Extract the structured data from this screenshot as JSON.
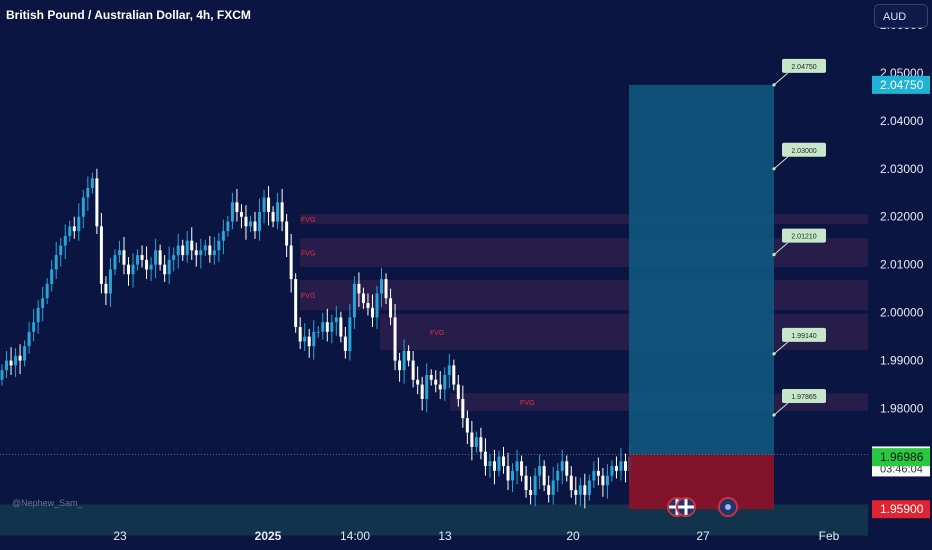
{
  "header": {
    "title": "British Pound / Australian Dollar, 4h, FXCM",
    "currency": "AUD"
  },
  "watermark": "@Nephew_Sam_",
  "colors": {
    "background": "#0b1541",
    "bull_candle": "#26a5d9",
    "bear_candle": "#ffffff",
    "target_zone": "#0f5b82",
    "stop_zone": "#8d1228",
    "fvg_zone": "#3a2350",
    "fvg_label": "#e0323e",
    "target_label_bg": "#c8e6c9",
    "current_price_label": "#ffffff",
    "bid_label": "#27c93f",
    "stop_label": "#e0232e",
    "take_profit_label": "#1fb3d6"
  },
  "chart_data": {
    "type": "candlestick",
    "title": "British Pound / Australian Dollar, 4h, FXCM",
    "y_unit": "AUD",
    "ylim": [
      1.9505,
      2.0652
    ],
    "y_ticks": [
      "2.06000",
      "2.05000",
      "2.04000",
      "2.03000",
      "2.02000",
      "2.01000",
      "2.00000",
      "1.99000",
      "1.98000"
    ],
    "x_ticks": [
      "23",
      "2025",
      "14:00",
      "13",
      "20",
      "27",
      "Feb"
    ],
    "grid": false,
    "candles_close": [
      1.988,
      1.99,
      1.989,
      1.991,
      1.99,
      1.993,
      1.996,
      1.998,
      2.001,
      2.003,
      2.006,
      2.009,
      2.012,
      2.014,
      2.016,
      2.018,
      2.017,
      2.02,
      2.024,
      2.026,
      2.028,
      2.018,
      2.006,
      2.004,
      2.009,
      2.012,
      2.013,
      2.01,
      2.008,
      2.01,
      2.012,
      2.011,
      2.009,
      2.01,
      2.013,
      2.01,
      2.008,
      2.011,
      2.012,
      2.014,
      2.012,
      2.015,
      2.013,
      2.012,
      2.013,
      2.014,
      2.012,
      2.013,
      2.015,
      2.017,
      2.019,
      2.023,
      2.021,
      2.02,
      2.018,
      2.019,
      2.017,
      2.021,
      2.024,
      2.021,
      2.019,
      2.023,
      2.019,
      2.014,
      2.007,
      1.997,
      1.994,
      1.995,
      1.993,
      1.996,
      1.996,
      1.998,
      1.996,
      1.998,
      1.999,
      1.995,
      1.992,
      1.999,
      2.006,
      2.004,
      2.002,
      2.001,
      1.999,
      2.004,
      2.007,
      2.003,
      1.999,
      1.99,
      1.988,
      1.992,
      1.99,
      1.986,
      1.985,
      1.982,
      1.987,
      1.986,
      1.985,
      1.984,
      1.987,
      1.989,
      1.985,
      1.982,
      1.978,
      1.975,
      1.972,
      1.974,
      1.971,
      1.968,
      1.969,
      1.967,
      1.97,
      1.968,
      1.965,
      1.967,
      1.969,
      1.966,
      1.963,
      1.962,
      1.966,
      1.968,
      1.964,
      1.962,
      1.965,
      1.967,
      1.969,
      1.966,
      1.963,
      1.962,
      1.964,
      1.962,
      1.965,
      1.967,
      1.966,
      1.964,
      1.966,
      1.968,
      1.967,
      1.969,
      1.967,
      1.97
    ],
    "current_price": "1.97043",
    "countdown": "03:46:04",
    "bid_price": "1.96986",
    "stop_loss": "1.95900",
    "take_profit": "2.04750",
    "entry": 1.9704,
    "fvg_zones": [
      {
        "label": "FVG",
        "from": 2.0185,
        "to": 2.0205
      },
      {
        "label": "FVG",
        "from": 2.0095,
        "to": 2.0155
      },
      {
        "label": "FVG",
        "from": 2.0005,
        "to": 2.0068
      },
      {
        "label": "FVG",
        "from": 1.9922,
        "to": 1.9998
      },
      {
        "label": "FVG",
        "from": 1.9795,
        "to": 1.9832
      }
    ],
    "demand_zone": {
      "from": 1.9535,
      "to": 1.96
    },
    "targets": [
      "2.04750",
      "2.03000",
      "2.01210",
      "1.99140",
      "1.97865"
    ]
  }
}
